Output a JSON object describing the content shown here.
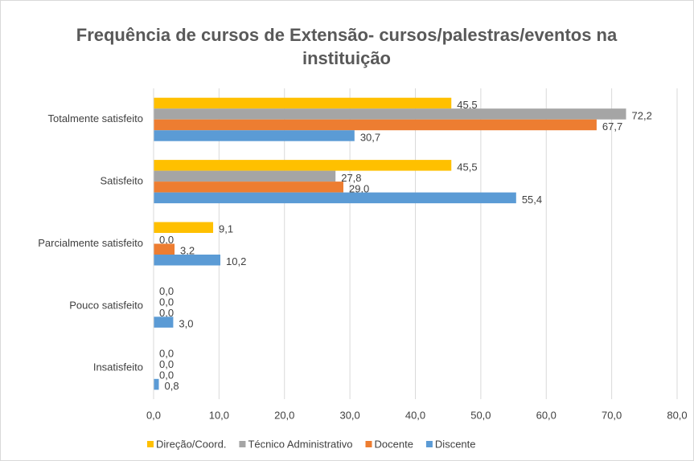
{
  "chart_data": {
    "type": "barh",
    "title": "Frequência de cursos de Extensão- cursos/palestras/eventos na instituição",
    "categories": [
      "Totalmente satisfeito",
      "Satisfeito",
      "Parcialmente satisfeito",
      "Pouco satisfeito",
      "Insatisfeito"
    ],
    "series": [
      {
        "name": "Direção/Coord.",
        "color": "#ffc000",
        "values": [
          45.5,
          45.5,
          9.1,
          0,
          0
        ],
        "value_labels": [
          "45,5",
          "45,5",
          "9,1",
          "0,0",
          "0,0"
        ]
      },
      {
        "name": "Técnico Administrativo",
        "color": "#a5a5a5",
        "values": [
          72.2,
          27.8,
          0,
          0,
          0
        ],
        "value_labels": [
          "72,2",
          "27,8",
          "0,0",
          "0,0",
          "0,0"
        ]
      },
      {
        "name": "Docente",
        "color": "#ed7d31",
        "values": [
          67.7,
          29.0,
          3.2,
          0,
          0
        ],
        "value_labels": [
          "67,7",
          "29,0",
          "3,2",
          "0,0",
          "0,0"
        ]
      },
      {
        "name": "Discente",
        "color": "#5b9bd5",
        "values": [
          30.7,
          55.4,
          10.2,
          3.0,
          0.8
        ],
        "value_labels": [
          "30,7",
          "55,4",
          "10,2",
          "3,0",
          "0,8"
        ]
      }
    ],
    "xlim": [
      0,
      80
    ],
    "xticks": [
      {
        "value": 0,
        "label": "0,0"
      },
      {
        "value": 10,
        "label": "10,0"
      },
      {
        "value": 20,
        "label": "20,0"
      },
      {
        "value": 30,
        "label": "30,0"
      },
      {
        "value": 40,
        "label": "40,0"
      },
      {
        "value": 50,
        "label": "50,0"
      },
      {
        "value": 60,
        "label": "60,0"
      },
      {
        "value": 70,
        "label": "70,0"
      },
      {
        "value": 80,
        "label": "80,0"
      }
    ],
    "grid": true,
    "legend": "bottom"
  }
}
